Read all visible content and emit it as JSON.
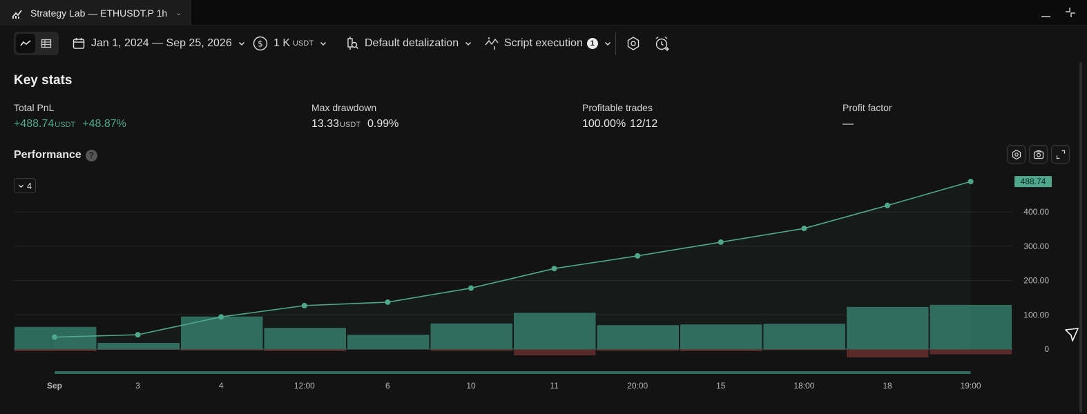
{
  "window": {
    "tab_title": "Strategy Lab — ETHUSDT.P 1h",
    "tab_icon": "chart-icon"
  },
  "toolbar": {
    "date_range": "Jan 1, 2024 — Sep 25, 2026",
    "capital_value": "1 K",
    "capital_unit": "USDT",
    "detalization": "Default detalization",
    "execution": "Script execution",
    "execution_count": "1"
  },
  "key_stats": {
    "title": "Key stats",
    "total_pnl": {
      "label": "Total PnL",
      "value": "+488.74",
      "unit": "USDT",
      "percent": "+48.87%"
    },
    "max_drawdown": {
      "label": "Max drawdown",
      "value": "13.33",
      "unit": "USDT",
      "percent": "0.99%"
    },
    "profitable_trades": {
      "label": "Profitable trades",
      "percent": "100.00%",
      "ratio": "12/12"
    },
    "profit_factor": {
      "label": "Profit factor",
      "value": "—"
    }
  },
  "performance": {
    "title": "Performance",
    "help": "?",
    "collapse_count": "4"
  },
  "colors": {
    "accent": "#4fa88b",
    "bar_fill": "#2e6a5c",
    "bar_negative": "#5a2a2a",
    "background": "#131313"
  },
  "chart_data": {
    "type": "line",
    "x": [
      "Sep",
      "3",
      "4",
      "12:00",
      "6",
      "10",
      "11",
      "20:00",
      "15",
      "18:00",
      "18",
      "19:00"
    ],
    "series": [
      {
        "type": "line",
        "values": [
          35,
          42,
          94,
          127,
          137,
          178,
          235,
          272,
          312,
          352,
          419,
          488.74
        ]
      },
      {
        "type": "bar",
        "values": [
          65,
          18,
          95,
          62,
          42,
          75,
          106,
          70,
          72,
          74,
          123,
          129
        ]
      },
      {
        "type": "bar",
        "values": [
          -6,
          -2,
          -4,
          -6,
          -1,
          -5,
          -18,
          -5,
          -6,
          -3,
          -24,
          -15
        ]
      }
    ],
    "y_ticks": [
      "0",
      "100.00",
      "200.00",
      "300.00",
      "400.00"
    ],
    "last_value_label": "488.74",
    "ylim": [
      -25,
      520
    ],
    "grid": true
  }
}
